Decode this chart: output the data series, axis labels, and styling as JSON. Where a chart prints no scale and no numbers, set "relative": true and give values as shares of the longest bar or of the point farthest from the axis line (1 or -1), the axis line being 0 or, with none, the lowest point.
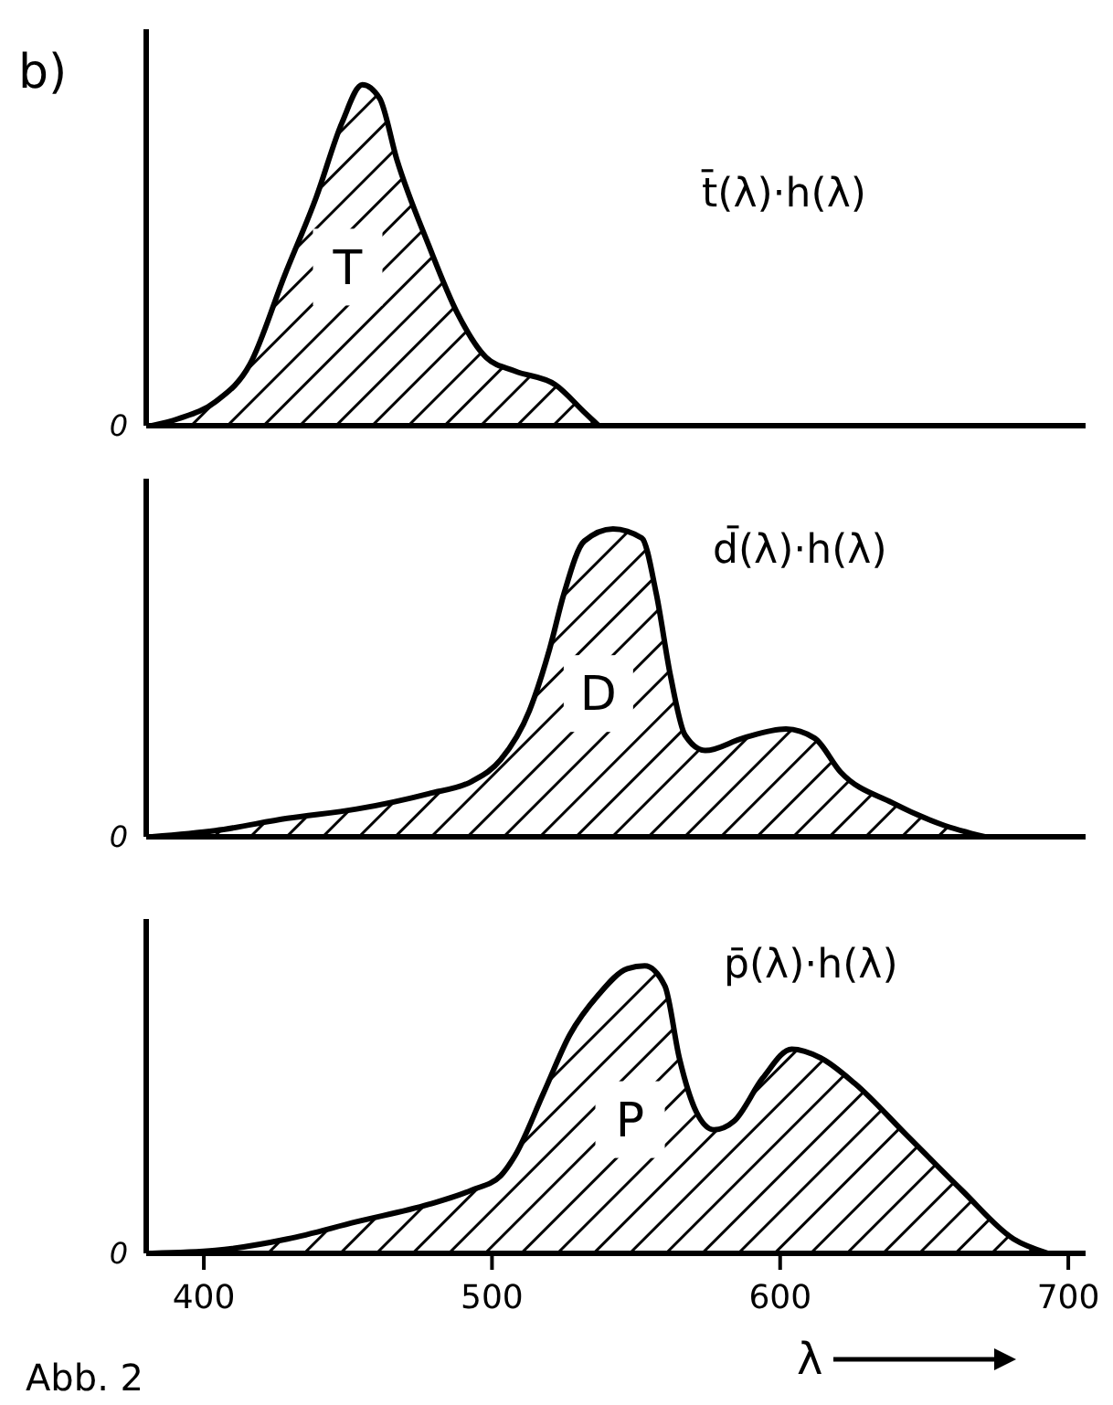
{
  "chart_data": [
    {
      "type": "area",
      "title": "b)",
      "relative": true,
      "xlim": [
        380,
        706
      ],
      "series": [
        {
          "name": "t̄(λ)·h(λ)",
          "color": "#000000",
          "x": [
            382,
            391,
            404,
            416,
            428,
            439,
            448,
            455,
            461,
            467,
            478,
            488,
            498,
            508,
            522,
            532,
            537
          ],
          "values": [
            0,
            0.02,
            0.07,
            0.18,
            0.44,
            0.67,
            0.89,
            1,
            0.96,
            0.78,
            0.53,
            0.33,
            0.2,
            0.16,
            0.12,
            0.04,
            0
          ]
        }
      ],
      "annotations": [
        "0",
        "T"
      ]
    },
    {
      "type": "area",
      "relative": true,
      "xlim": [
        380,
        706
      ],
      "series": [
        {
          "name": "d̄(λ)·h(λ)",
          "color": "#000000",
          "x": [
            382,
            404,
            429,
            453,
            478,
            493,
            503,
            513,
            520,
            525,
            532,
            542,
            552,
            557,
            562,
            567,
            574,
            587,
            602,
            612,
            621,
            639,
            656,
            671
          ],
          "values": [
            0,
            0.02,
            0.06,
            0.09,
            0.14,
            0.18,
            0.25,
            0.41,
            0.61,
            0.79,
            0.96,
            1,
            0.97,
            0.79,
            0.52,
            0.33,
            0.28,
            0.32,
            0.35,
            0.32,
            0.21,
            0.11,
            0.04,
            0
          ]
        }
      ],
      "annotations": [
        "0",
        "D"
      ]
    },
    {
      "type": "area",
      "relative": true,
      "xlim": [
        380,
        706
      ],
      "xticks": [
        400,
        500,
        600,
        700
      ],
      "xlabel": "λ",
      "series": [
        {
          "name": "p̄(λ)·h(λ)",
          "color": "#000000",
          "x": [
            382,
            404,
            429,
            453,
            478,
            493,
            503,
            508,
            518,
            527,
            537,
            547,
            553,
            560,
            565,
            571,
            577,
            584,
            594,
            604,
            614,
            626,
            644,
            663,
            681,
            693
          ],
          "values": [
            0,
            0.01,
            0.05,
            0.11,
            0.17,
            0.22,
            0.27,
            0.34,
            0.56,
            0.76,
            0.9,
            0.99,
            1,
            0.93,
            0.68,
            0.49,
            0.43,
            0.46,
            0.61,
            0.71,
            0.68,
            0.59,
            0.41,
            0.22,
            0.05,
            0
          ]
        }
      ],
      "annotations": [
        "0",
        "P",
        "Abb. 2"
      ]
    }
  ]
}
